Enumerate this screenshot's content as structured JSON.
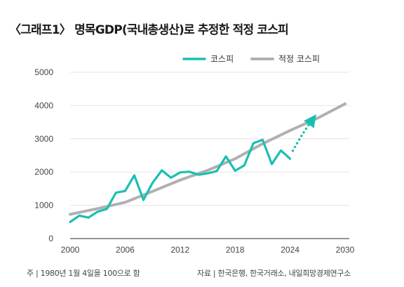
{
  "title": "〈그래프1〉 명목GDP(국내총생산)로 추정한 적정 코스피",
  "footnote": "주 | 1980년 1월 4일을 100으로 함",
  "source": "자료 | 한국은행, 한국거래소, 내일희망경제연구소",
  "chart_data": {
    "type": "line",
    "x_ticks": [
      "2000",
      "2006",
      "2012",
      "2018",
      "2024",
      "2030"
    ],
    "y_ticks": [
      "5000",
      "4000",
      "3000",
      "2000",
      "1000",
      "0"
    ],
    "xlim": [
      2000,
      2030
    ],
    "ylim": [
      0,
      5000
    ],
    "legend_position": "top-right",
    "grid": "horizontal",
    "series": [
      {
        "name": "코스피",
        "color": "#1bbfb1",
        "style": "solid",
        "points": [
          [
            2000,
            500
          ],
          [
            2001,
            690
          ],
          [
            2002,
            630
          ],
          [
            2003,
            810
          ],
          [
            2004,
            890
          ],
          [
            2005,
            1380
          ],
          [
            2006,
            1430
          ],
          [
            2007,
            1900
          ],
          [
            2008,
            1160
          ],
          [
            2009,
            1680
          ],
          [
            2010,
            2050
          ],
          [
            2011,
            1830
          ],
          [
            2012,
            1990
          ],
          [
            2013,
            2010
          ],
          [
            2014,
            1920
          ],
          [
            2015,
            1960
          ],
          [
            2016,
            2030
          ],
          [
            2017,
            2470
          ],
          [
            2018,
            2040
          ],
          [
            2019,
            2200
          ],
          [
            2020,
            2870
          ],
          [
            2021,
            2970
          ],
          [
            2022,
            2240
          ],
          [
            2023,
            2650
          ],
          [
            2024,
            2400
          ]
        ]
      },
      {
        "name": "적정 코스피",
        "color": "#b0b0b0",
        "style": "solid",
        "points": [
          [
            2000,
            730
          ],
          [
            2003,
            900
          ],
          [
            2006,
            1090
          ],
          [
            2009,
            1420
          ],
          [
            2012,
            1760
          ],
          [
            2015,
            2050
          ],
          [
            2018,
            2400
          ],
          [
            2021,
            2850
          ],
          [
            2024,
            3250
          ],
          [
            2027,
            3620
          ],
          [
            2030,
            4050
          ]
        ]
      }
    ],
    "projection": {
      "color": "#1bbfb1",
      "style": "dotted-arrow",
      "points": [
        [
          2024.3,
          2640
        ],
        [
          2025.3,
          3150
        ],
        [
          2026.5,
          3600
        ]
      ]
    }
  }
}
